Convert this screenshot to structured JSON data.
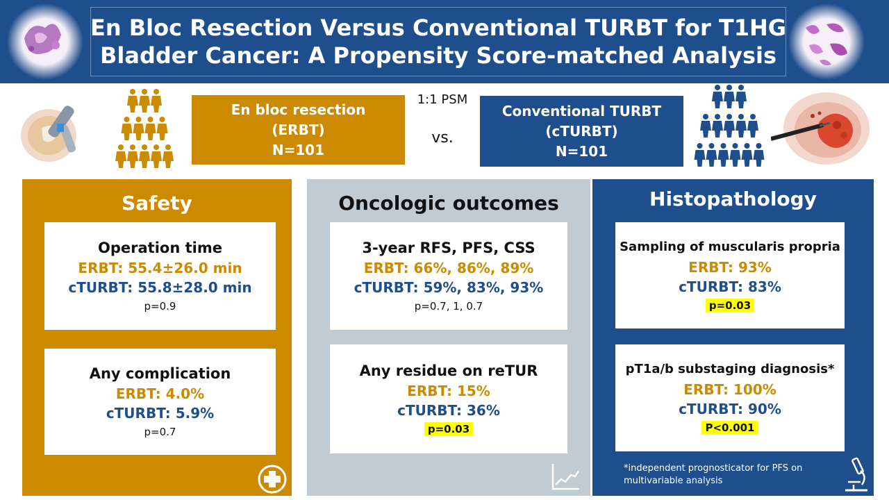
{
  "header": {
    "title_line1": "En Bloc Resection Versus Conventional TURBT for T1HG",
    "title_line2": "Bladder Cancer: A Propensity Score-matched Analysis"
  },
  "arms": {
    "psm": "1:1 PSM",
    "vs": "vs.",
    "erbt": {
      "name": "En bloc resection",
      "abbr": "(ERBT)",
      "n": "N=101"
    },
    "cturbt": {
      "name": "Conventional TURBT",
      "abbr": "(cTURBT)",
      "n": "N=101"
    }
  },
  "safety": {
    "title": "Safety",
    "op_time": {
      "title": "Operation time",
      "erbt": "ERBT: 55.4±26.0 min",
      "cturbt": "cTURBT: 55.8±28.0 min",
      "p": "p=0.9"
    },
    "complication": {
      "title": "Any complication",
      "erbt": "ERBT: 4.0%",
      "cturbt": "cTURBT: 5.9%",
      "p": "p=0.7"
    }
  },
  "oncologic": {
    "title": "Oncologic outcomes",
    "survival": {
      "title": "3-year RFS, PFS, CSS",
      "erbt": "ERBT: 66%, 86%, 89%",
      "cturbt": "cTURBT: 59%, 83%, 93%",
      "p": "p=0.7, 1, 0.7"
    },
    "residue": {
      "title": "Any residue on reTUR",
      "erbt": "ERBT: 15%",
      "cturbt": "cTURBT: 36%",
      "p": "p=0.03"
    }
  },
  "histopathology": {
    "title": "Histopathology",
    "sampling": {
      "title": "Sampling of muscularis propria",
      "erbt": "ERBT: 93%",
      "cturbt": "cTURBT: 83%",
      "p": "p=0.03"
    },
    "substaging": {
      "title": "pT1a/b substaging diagnosis*",
      "erbt": "ERBT: 100%",
      "cturbt": "cTURBT: 90%",
      "p": "P<0.001"
    },
    "footnote_line1": "*independent prognosticator for PFS on",
    "footnote_line2": "multivariable analysis"
  },
  "colors": {
    "gold": "#cc8a00",
    "navy": "#1f4e8c",
    "gray": "#c0cbd3",
    "highlight": "#ffff00"
  },
  "icons": [
    "histology-slide-icon",
    "person-pyramid-icon",
    "resectoscope-illustration-icon",
    "cross-in-circle-icon",
    "trend-chart-icon",
    "microscope-icon"
  ]
}
